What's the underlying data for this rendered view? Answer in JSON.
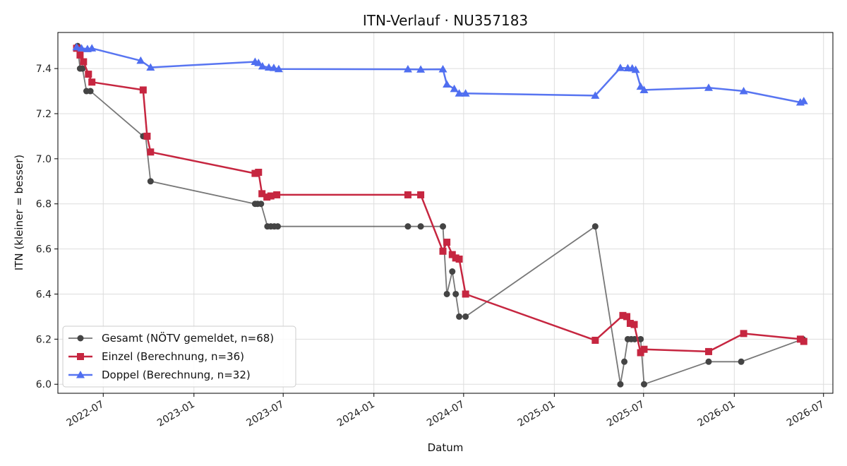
{
  "chart_data": {
    "type": "line",
    "title": "ITN-Verlauf · NU357183",
    "xlabel": "Datum",
    "ylabel": "ITN  (kleiner = besser)",
    "xlim": [
      "2022-03-31",
      "2026-07-20"
    ],
    "ylim": [
      5.96,
      7.56
    ],
    "x_ticks": [
      "2022-07-01",
      "2023-01-01",
      "2023-07-01",
      "2024-01-01",
      "2024-07-01",
      "2025-01-01",
      "2025-07-01",
      "2026-01-01",
      "2026-07-01"
    ],
    "x_tick_labels": [
      "2022-07",
      "2023-01",
      "2023-07",
      "2024-01",
      "2024-07",
      "2025-01",
      "2025-07",
      "2026-01",
      "2026-07"
    ],
    "y_ticks": [
      6.0,
      6.2,
      6.4,
      6.6,
      6.8,
      7.0,
      7.2,
      7.4
    ],
    "y_tick_labels": [
      "6.0",
      "6.2",
      "6.4",
      "6.6",
      "6.8",
      "7.0",
      "7.2",
      "7.4"
    ],
    "grid": true,
    "legend_position": "lower-left",
    "series": [
      {
        "name": "Gesamt (NÖTV gemeldet, n=68)",
        "color": "#555555",
        "marker": "circle",
        "points": [
          [
            "2022-05-10",
            7.5
          ],
          [
            "2022-05-15",
            7.4
          ],
          [
            "2022-05-20",
            7.4
          ],
          [
            "2022-05-28",
            7.3
          ],
          [
            "2022-06-05",
            7.3
          ],
          [
            "2022-09-20",
            7.1
          ],
          [
            "2022-09-25",
            7.1
          ],
          [
            "2022-10-05",
            6.9
          ],
          [
            "2023-05-05",
            6.8
          ],
          [
            "2023-05-10",
            6.8
          ],
          [
            "2023-05-17",
            6.8
          ],
          [
            "2023-05-30",
            6.7
          ],
          [
            "2023-06-06",
            6.7
          ],
          [
            "2023-06-13",
            6.7
          ],
          [
            "2023-06-20",
            6.7
          ],
          [
            "2024-03-10",
            6.7
          ],
          [
            "2024-04-05",
            6.7
          ],
          [
            "2024-05-20",
            6.7
          ],
          [
            "2024-05-28",
            6.4
          ],
          [
            "2024-06-08",
            6.5
          ],
          [
            "2024-06-15",
            6.4
          ],
          [
            "2024-06-22",
            6.3
          ],
          [
            "2024-07-05",
            6.3
          ],
          [
            "2025-03-25",
            6.7
          ],
          [
            "2025-05-15",
            6.0
          ],
          [
            "2025-05-23",
            6.1
          ],
          [
            "2025-05-30",
            6.2
          ],
          [
            "2025-06-06",
            6.2
          ],
          [
            "2025-06-13",
            6.2
          ],
          [
            "2025-06-25",
            6.2
          ],
          [
            "2025-07-02",
            6.0
          ],
          [
            "2025-11-10",
            6.1
          ],
          [
            "2026-01-15",
            6.1
          ],
          [
            "2026-05-20",
            6.2
          ]
        ]
      },
      {
        "name": "Einzel (Berechnung, n=36)",
        "color": "#c62640",
        "marker": "square",
        "points": [
          [
            "2022-05-08",
            7.49
          ],
          [
            "2022-05-15",
            7.46
          ],
          [
            "2022-05-22",
            7.43
          ],
          [
            "2022-06-01",
            7.375
          ],
          [
            "2022-06-08",
            7.34
          ],
          [
            "2022-09-20",
            7.305
          ],
          [
            "2022-09-28",
            7.1
          ],
          [
            "2022-10-05",
            7.03
          ],
          [
            "2023-05-05",
            6.935
          ],
          [
            "2023-05-12",
            6.94
          ],
          [
            "2023-05-19",
            6.845
          ],
          [
            "2023-05-29",
            6.83
          ],
          [
            "2023-06-06",
            6.835
          ],
          [
            "2023-06-18",
            6.84
          ],
          [
            "2024-03-10",
            6.84
          ],
          [
            "2024-04-05",
            6.84
          ],
          [
            "2024-05-20",
            6.59
          ],
          [
            "2024-05-28",
            6.63
          ],
          [
            "2024-06-08",
            6.575
          ],
          [
            "2024-06-15",
            6.56
          ],
          [
            "2024-06-22",
            6.555
          ],
          [
            "2024-07-05",
            6.4
          ],
          [
            "2025-03-25",
            6.195
          ],
          [
            "2025-05-20",
            6.305
          ],
          [
            "2025-05-28",
            6.3
          ],
          [
            "2025-06-04",
            6.27
          ],
          [
            "2025-06-12",
            6.265
          ],
          [
            "2025-06-25",
            6.14
          ],
          [
            "2025-07-02",
            6.155
          ],
          [
            "2025-11-10",
            6.145
          ],
          [
            "2026-01-20",
            6.225
          ],
          [
            "2026-05-15",
            6.2
          ],
          [
            "2026-05-22",
            6.19
          ]
        ]
      },
      {
        "name": "Doppel (Berechnung, n=32)",
        "color": "#4f6ef0",
        "marker": "triangle",
        "points": [
          [
            "2022-05-08",
            7.495
          ],
          [
            "2022-05-18",
            7.49
          ],
          [
            "2022-05-30",
            7.487
          ],
          [
            "2022-06-08",
            7.49
          ],
          [
            "2022-09-15",
            7.435
          ],
          [
            "2022-10-05",
            7.405
          ],
          [
            "2023-05-05",
            7.43
          ],
          [
            "2023-05-12",
            7.425
          ],
          [
            "2023-05-20",
            7.41
          ],
          [
            "2023-06-02",
            7.405
          ],
          [
            "2023-06-12",
            7.403
          ],
          [
            "2023-06-22",
            7.398
          ],
          [
            "2024-03-10",
            7.397
          ],
          [
            "2024-04-05",
            7.396
          ],
          [
            "2024-05-20",
            7.397
          ],
          [
            "2024-05-28",
            7.33
          ],
          [
            "2024-06-12",
            7.31
          ],
          [
            "2024-06-22",
            7.29
          ],
          [
            "2024-07-05",
            7.29
          ],
          [
            "2025-03-25",
            7.28
          ],
          [
            "2025-05-15",
            7.403
          ],
          [
            "2025-05-30",
            7.402
          ],
          [
            "2025-06-08",
            7.401
          ],
          [
            "2025-06-15",
            7.395
          ],
          [
            "2025-06-25",
            7.32
          ],
          [
            "2025-07-02",
            7.305
          ],
          [
            "2025-11-10",
            7.315
          ],
          [
            "2026-01-20",
            7.3
          ],
          [
            "2026-05-15",
            7.25
          ],
          [
            "2026-05-22",
            7.256
          ]
        ]
      }
    ]
  }
}
